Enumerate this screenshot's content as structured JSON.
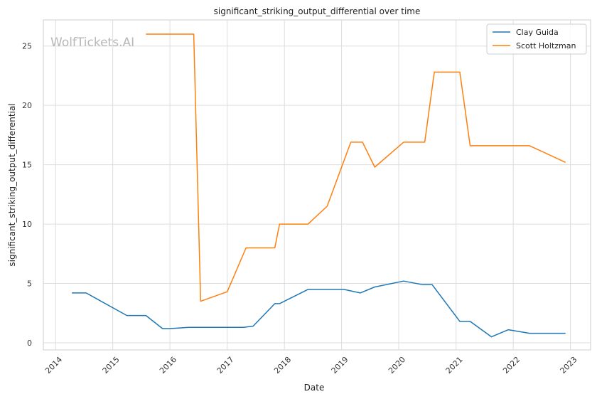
{
  "watermark": "WolfTickets.AI",
  "chart_data": {
    "type": "line",
    "title": "significant_striking_output_differential over time",
    "xlabel": "Date",
    "ylabel": "significant_striking_output_differential",
    "x_ticks": [
      "2014",
      "2015",
      "2016",
      "2017",
      "2018",
      "2019",
      "2020",
      "2021",
      "2022",
      "2023"
    ],
    "y_ticks": [
      0,
      5,
      10,
      15,
      20,
      25
    ],
    "xlim": [
      "2013-10-15",
      "2023-05-10"
    ],
    "ylim": [
      -0.6,
      27.2
    ],
    "grid": true,
    "legend_position": "top-right",
    "series": [
      {
        "name": "Clay Guida",
        "color": "#1f77b4",
        "points": [
          [
            "2014-04-15",
            4.2
          ],
          [
            "2014-07-15",
            4.2
          ],
          [
            "2015-04-01",
            2.3
          ],
          [
            "2015-08-01",
            2.3
          ],
          [
            "2015-11-15",
            1.2
          ],
          [
            "2016-01-01",
            1.2
          ],
          [
            "2016-05-01",
            1.3
          ],
          [
            "2017-04-15",
            1.3
          ],
          [
            "2017-06-15",
            1.4
          ],
          [
            "2017-11-01",
            3.3
          ],
          [
            "2017-12-01",
            3.3
          ],
          [
            "2018-06-01",
            4.5
          ],
          [
            "2019-01-15",
            4.5
          ],
          [
            "2019-05-01",
            4.2
          ],
          [
            "2019-08-01",
            4.7
          ],
          [
            "2020-02-01",
            5.2
          ],
          [
            "2020-06-01",
            4.9
          ],
          [
            "2020-08-01",
            4.9
          ],
          [
            "2021-01-25",
            1.8
          ],
          [
            "2021-04-01",
            1.8
          ],
          [
            "2021-08-15",
            0.5
          ],
          [
            "2021-12-01",
            1.1
          ],
          [
            "2022-04-15",
            0.8
          ],
          [
            "2022-12-01",
            0.8
          ]
        ]
      },
      {
        "name": "Scott Holtzman",
        "color": "#ff7f0e",
        "points": [
          [
            "2015-08-01",
            26.0
          ],
          [
            "2016-06-01",
            26.0
          ],
          [
            "2016-07-15",
            3.5
          ],
          [
            "2017-01-01",
            4.3
          ],
          [
            "2017-05-01",
            8.0
          ],
          [
            "2017-11-01",
            8.0
          ],
          [
            "2017-12-01",
            10.0
          ],
          [
            "2018-06-01",
            10.0
          ],
          [
            "2018-10-01",
            11.5
          ],
          [
            "2019-03-01",
            16.9
          ],
          [
            "2019-05-15",
            16.9
          ],
          [
            "2019-08-01",
            14.8
          ],
          [
            "2020-02-01",
            16.9
          ],
          [
            "2020-06-15",
            16.9
          ],
          [
            "2020-08-15",
            22.8
          ],
          [
            "2021-01-25",
            22.8
          ],
          [
            "2021-04-01",
            16.6
          ],
          [
            "2022-04-15",
            16.6
          ],
          [
            "2022-12-01",
            15.2
          ]
        ]
      }
    ]
  }
}
